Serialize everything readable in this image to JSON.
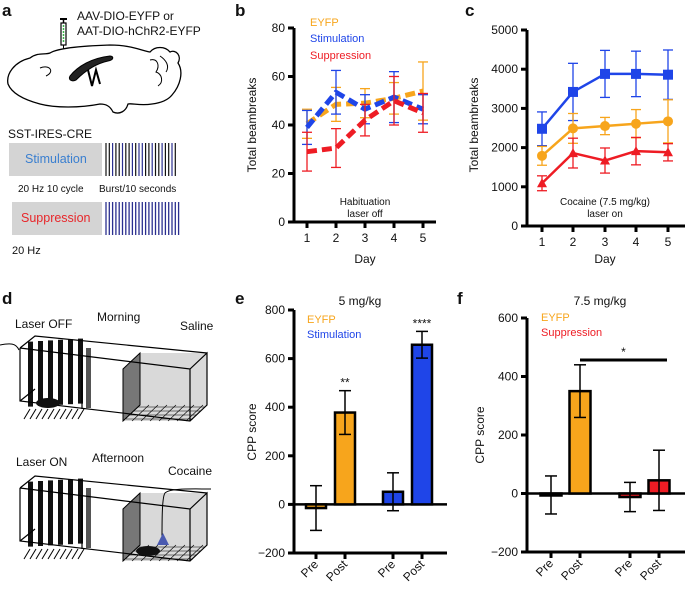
{
  "panels": {
    "a": {
      "label": "a",
      "virus_line1": "AAV-DIO-EYFP or",
      "virus_line2": "AAT-DIO-hChR2-EYFP",
      "mouse_line": "SST-IRES-CRE",
      "stim_label": "Stimulation",
      "stim_caption_left": "20 Hz 10 cycle",
      "stim_caption_right": "Burst/10 seconds",
      "supp_label": "Suppression",
      "supp_caption": "20 Hz",
      "colors": {
        "stimulation_text": "#3a7fd0",
        "suppression_text": "#e8262a",
        "pulse": "#2b2f8f",
        "box": "#d4d4d4"
      }
    },
    "d": {
      "label": "d",
      "top": {
        "laser": "Laser OFF",
        "time": "Morning",
        "drug": "Saline"
      },
      "bottom": {
        "laser": "Laser ON",
        "time": "Afternoon",
        "drug": "Cocaine"
      },
      "colors": {
        "laser_marker": "#4a5ab0"
      }
    }
  },
  "colors": {
    "eyfp": "#f7a51c",
    "stimulation": "#1f45e8",
    "suppression": "#ee1c24",
    "axis": "#000000"
  },
  "chart_data": [
    {
      "id": "b",
      "label": "b",
      "type": "line",
      "title": "",
      "xlabel": "Day",
      "ylabel": "Total beambreaks",
      "x": [
        1,
        2,
        3,
        4,
        5
      ],
      "xticks": [
        "1",
        "2",
        "3",
        "4",
        "5"
      ],
      "ylim": [
        0,
        80
      ],
      "yticks": [
        0,
        20,
        40,
        60,
        80
      ],
      "annotation": [
        "Habituation",
        "laser off"
      ],
      "line_style": "dashed",
      "legend": [
        "EYFP",
        "Stimulation",
        "Suppression"
      ],
      "legend_position": "top-left",
      "series": [
        {
          "name": "EYFP",
          "color_key": "eyfp",
          "values": [
            40.5,
            48.5,
            49,
            51,
            54
          ],
          "err": [
            6,
            7,
            6,
            6.5,
            12
          ]
        },
        {
          "name": "Stimulation",
          "color_key": "stimulation",
          "values": [
            39,
            53.5,
            46.5,
            51.5,
            46.5
          ],
          "err": [
            7,
            9,
            6,
            10.5,
            6
          ]
        },
        {
          "name": "Suppression",
          "color_key": "suppression",
          "values": [
            29,
            30.5,
            42,
            50,
            45
          ],
          "err": [
            8,
            8,
            6.5,
            10,
            8
          ]
        }
      ]
    },
    {
      "id": "c",
      "label": "c",
      "type": "line",
      "title": "",
      "xlabel": "Day",
      "ylabel": "Total beambreaks",
      "x": [
        1,
        2,
        3,
        4,
        5
      ],
      "xticks": [
        "1",
        "2",
        "3",
        "4",
        "5"
      ],
      "ylim": [
        0,
        5000
      ],
      "yticks": [
        0,
        1000,
        2000,
        3000,
        4000,
        5000
      ],
      "annotation": [
        "Cocaine (7.5 mg/kg)",
        "laser on"
      ],
      "line_style": "solid",
      "series": [
        {
          "name": "Stimulation",
          "color_key": "stimulation",
          "marker": "square",
          "values": [
            2480,
            3420,
            3880,
            3880,
            3860
          ],
          "err": [
            430,
            730,
            600,
            580,
            630
          ]
        },
        {
          "name": "EYFP",
          "color_key": "eyfp",
          "marker": "circle",
          "values": [
            1790,
            2490,
            2550,
            2610,
            2670
          ],
          "err": [
            240,
            380,
            220,
            360,
            550
          ]
        },
        {
          "name": "Suppression",
          "color_key": "suppression",
          "marker": "triangle",
          "values": [
            1090,
            1860,
            1670,
            1910,
            1880
          ],
          "err": [
            190,
            380,
            320,
            350,
            220
          ]
        }
      ]
    },
    {
      "id": "e",
      "label": "e",
      "type": "bar",
      "title": "5 mg/kg",
      "xlabel": "",
      "ylabel": "CPP score",
      "categories": [
        "Pre",
        "Post",
        "Pre",
        "Post"
      ],
      "ylim": [
        -200,
        800
      ],
      "yticks": [
        -200,
        0,
        200,
        400,
        600,
        800
      ],
      "ytick_labels": [
        "−200",
        "0",
        "200",
        "400",
        "600",
        "800"
      ],
      "legend": [
        "EYFP",
        "Stimulation"
      ],
      "legend_position": "top-left",
      "series": [
        {
          "name": "EYFP",
          "color_key": "eyfp",
          "values": [
            -15,
            378
          ],
          "err": [
            92,
            90
          ],
          "sig": [
            "",
            "**"
          ]
        },
        {
          "name": "Stimulation",
          "color_key": "stimulation",
          "values": [
            52,
            657
          ],
          "err": [
            78,
            55
          ],
          "sig": [
            "",
            "****"
          ]
        }
      ]
    },
    {
      "id": "f",
      "label": "f",
      "type": "bar",
      "title": "7.5 mg/kg",
      "xlabel": "",
      "ylabel": "CPP score",
      "categories": [
        "Pre",
        "Post",
        "Pre",
        "Post"
      ],
      "ylim": [
        -200,
        600
      ],
      "yticks": [
        -200,
        0,
        200,
        400,
        600
      ],
      "ytick_labels": [
        "−200",
        "0",
        "200",
        "400",
        "600"
      ],
      "legend": [
        "EYFP",
        "Suppression"
      ],
      "legend_position": "top-left",
      "series": [
        {
          "name": "EYFP",
          "color_key": "eyfp",
          "values": [
            -5,
            350
          ],
          "err": [
            65,
            90
          ]
        },
        {
          "name": "Suppression",
          "color_key": "suppression",
          "values": [
            -12,
            45
          ],
          "err": [
            50,
            103
          ]
        }
      ],
      "comparison": {
        "from": 1,
        "to": 3,
        "label": "*"
      }
    }
  ]
}
